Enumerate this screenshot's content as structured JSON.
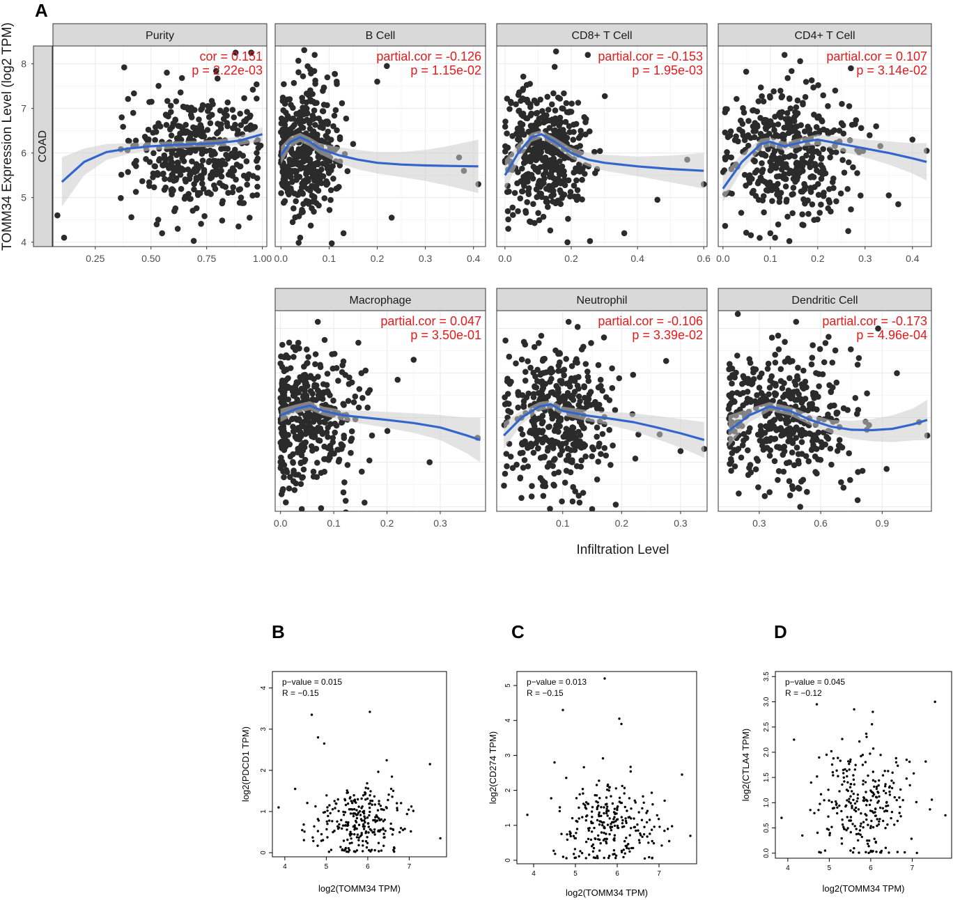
{
  "figure": {
    "panel_letters": [
      "A",
      "B",
      "C",
      "D"
    ],
    "y_title": "TOMM34 Expression Level (log2 TPM)",
    "x_title": "Infiltration Level",
    "row_strip": "COAD",
    "colors": {
      "point": "#2b2b2b",
      "smooth": "#3366cc",
      "ribbon": "#cccccc",
      "annotation": "#e31a1c",
      "strip_bg": "#d9d9d9",
      "grid": "#ebebeb"
    }
  },
  "chart_data": [
    {
      "id": "purity",
      "type": "scatter",
      "title": "Purity",
      "ann1": "cor = 0.151",
      "ann2": "p = 2.22e-03",
      "xlim": [
        0.06,
        1.02
      ],
      "ylim": [
        3.9,
        8.4
      ],
      "xticks": [
        0.25,
        0.5,
        0.75,
        1.0
      ],
      "xtick_labels": [
        "0.25",
        "0.50",
        "0.75",
        "1.00"
      ],
      "yticks": [
        4,
        5,
        6,
        7,
        8
      ],
      "ytick_labels": [
        "4",
        "5",
        "6",
        "7",
        "8"
      ],
      "smooth": [
        [
          0.1,
          5.35
        ],
        [
          0.2,
          5.8
        ],
        [
          0.3,
          6.02
        ],
        [
          0.4,
          6.1
        ],
        [
          0.5,
          6.15
        ],
        [
          0.6,
          6.18
        ],
        [
          0.7,
          6.2
        ],
        [
          0.8,
          6.22
        ],
        [
          0.9,
          6.28
        ],
        [
          1.0,
          6.42
        ]
      ],
      "band": [
        0.55,
        0.3,
        0.18,
        0.12,
        0.09,
        0.08,
        0.07,
        0.08,
        0.1,
        0.16
      ],
      "cluster": {
        "cx": 0.72,
        "sx": 0.14,
        "cy": 6.05,
        "sy": 0.75,
        "n": 420,
        "xmin": 0.1,
        "xmax": 1.0,
        "seed": 11
      },
      "outliers": [
        [
          0.11,
          4.1
        ],
        [
          0.08,
          4.6
        ],
        [
          0.95,
          8.25
        ],
        [
          0.38,
          7.92
        ],
        [
          0.88,
          8.25
        ],
        [
          0.55,
          4.2
        ],
        [
          0.62,
          4.3
        ]
      ]
    },
    {
      "id": "bcell",
      "type": "scatter",
      "title": "B Cell",
      "ann1": "partial.cor = -0.126",
      "ann2": "p = 1.15e-02",
      "xlim": [
        -0.012,
        0.425
      ],
      "ylim": [
        3.9,
        8.4
      ],
      "xticks": [
        0.0,
        0.1,
        0.2,
        0.3,
        0.4
      ],
      "xtick_labels": [
        "0.0",
        "0.1",
        "0.2",
        "0.3",
        "0.4"
      ],
      "yticks": [
        4,
        5,
        6,
        7,
        8
      ],
      "ytick_labels": [],
      "smooth": [
        [
          0.0,
          5.95
        ],
        [
          0.02,
          6.25
        ],
        [
          0.04,
          6.35
        ],
        [
          0.06,
          6.25
        ],
        [
          0.08,
          6.1
        ],
        [
          0.12,
          5.95
        ],
        [
          0.16,
          5.85
        ],
        [
          0.2,
          5.78
        ],
        [
          0.25,
          5.74
        ],
        [
          0.3,
          5.72
        ],
        [
          0.35,
          5.71
        ],
        [
          0.41,
          5.7
        ]
      ],
      "band": [
        0.2,
        0.12,
        0.1,
        0.1,
        0.12,
        0.18,
        0.22,
        0.24,
        0.28,
        0.35,
        0.45,
        0.6
      ],
      "cluster": {
        "cx": 0.05,
        "sx": 0.035,
        "cy": 6.0,
        "sy": 0.75,
        "n": 420,
        "xmin": 0.0,
        "xmax": 0.42,
        "seed": 23
      },
      "outliers": [
        [
          0.07,
          8.2
        ],
        [
          0.22,
          7.95
        ],
        [
          0.2,
          7.6
        ],
        [
          0.23,
          4.55
        ],
        [
          0.41,
          5.3
        ],
        [
          0.38,
          5.6
        ],
        [
          0.37,
          5.9
        ],
        [
          0.13,
          4.2
        ],
        [
          0.04,
          4.1
        ]
      ]
    },
    {
      "id": "cd8",
      "type": "scatter",
      "title": "CD8+ T Cell",
      "ann1": "partial.cor = -0.153",
      "ann2": "p = 1.95e-03",
      "xlim": [
        -0.025,
        0.61
      ],
      "ylim": [
        3.9,
        8.4
      ],
      "xticks": [
        0.0,
        0.2,
        0.4,
        0.6
      ],
      "xtick_labels": [
        "0.0",
        "0.2",
        "0.4",
        "0.6"
      ],
      "yticks": [
        4,
        5,
        6,
        7,
        8
      ],
      "ytick_labels": [],
      "smooth": [
        [
          0.0,
          5.5
        ],
        [
          0.04,
          6.0
        ],
        [
          0.08,
          6.35
        ],
        [
          0.11,
          6.42
        ],
        [
          0.15,
          6.25
        ],
        [
          0.2,
          6.0
        ],
        [
          0.25,
          5.85
        ],
        [
          0.3,
          5.78
        ],
        [
          0.4,
          5.7
        ],
        [
          0.5,
          5.64
        ],
        [
          0.6,
          5.6
        ]
      ],
      "band": [
        0.35,
        0.2,
        0.1,
        0.09,
        0.1,
        0.12,
        0.15,
        0.18,
        0.22,
        0.3,
        0.4
      ],
      "cluster": {
        "cx": 0.12,
        "sx": 0.06,
        "cy": 6.0,
        "sy": 0.75,
        "n": 420,
        "xmin": 0.0,
        "xmax": 0.6,
        "seed": 37
      },
      "outliers": [
        [
          0.25,
          8.2
        ],
        [
          0.6,
          5.3
        ],
        [
          0.46,
          4.95
        ],
        [
          0.36,
          4.2
        ],
        [
          0.01,
          4.3
        ],
        [
          0.55,
          5.85
        ]
      ]
    },
    {
      "id": "cd4",
      "type": "scatter",
      "title": "CD4+ T Cell",
      "ann1": "partial.cor = 0.107",
      "ann2": "p = 3.14e-02",
      "xlim": [
        -0.01,
        0.44
      ],
      "ylim": [
        3.9,
        8.4
      ],
      "xticks": [
        0.0,
        0.1,
        0.2,
        0.3,
        0.4
      ],
      "xtick_labels": [
        "0.0",
        "0.1",
        "0.2",
        "0.3",
        "0.4"
      ],
      "yticks": [
        4,
        5,
        6,
        7,
        8
      ],
      "ytick_labels": [],
      "smooth": [
        [
          0.0,
          5.2
        ],
        [
          0.04,
          5.8
        ],
        [
          0.08,
          6.2
        ],
        [
          0.1,
          6.25
        ],
        [
          0.13,
          6.15
        ],
        [
          0.17,
          6.25
        ],
        [
          0.2,
          6.3
        ],
        [
          0.25,
          6.2
        ],
        [
          0.3,
          6.1
        ],
        [
          0.35,
          6.0
        ],
        [
          0.4,
          5.88
        ],
        [
          0.43,
          5.8
        ]
      ],
      "band": [
        0.3,
        0.18,
        0.12,
        0.1,
        0.1,
        0.1,
        0.12,
        0.16,
        0.2,
        0.26,
        0.34,
        0.42
      ],
      "cluster": {
        "cx": 0.14,
        "sx": 0.07,
        "cy": 6.0,
        "sy": 0.75,
        "n": 420,
        "xmin": 0.0,
        "xmax": 0.43,
        "seed": 53
      },
      "outliers": [
        [
          0.13,
          8.2
        ],
        [
          0.27,
          7.9
        ],
        [
          0.35,
          5.05
        ],
        [
          0.37,
          4.85
        ],
        [
          0.43,
          6.05
        ],
        [
          0.4,
          6.3
        ],
        [
          0.11,
          4.1
        ],
        [
          0.1,
          4.2
        ]
      ]
    },
    {
      "id": "macrophage",
      "type": "scatter",
      "title": "Macrophage",
      "ann1": "partial.cor = 0.047",
      "ann2": "p = 3.50e-01",
      "xlim": [
        -0.01,
        0.385
      ],
      "ylim": [
        3.9,
        8.4
      ],
      "xticks": [
        0.0,
        0.1,
        0.2,
        0.3
      ],
      "xtick_labels": [
        "0.0",
        "0.1",
        "0.2",
        "0.3"
      ],
      "yticks": [
        4,
        5,
        6,
        7,
        8
      ],
      "ytick_labels": [],
      "smooth": [
        [
          0.0,
          6.05
        ],
        [
          0.03,
          6.2
        ],
        [
          0.055,
          6.27
        ],
        [
          0.08,
          6.15
        ],
        [
          0.12,
          6.05
        ],
        [
          0.16,
          6.0
        ],
        [
          0.2,
          5.95
        ],
        [
          0.25,
          5.88
        ],
        [
          0.3,
          5.78
        ],
        [
          0.35,
          5.6
        ],
        [
          0.375,
          5.5
        ]
      ],
      "band": [
        0.15,
        0.1,
        0.1,
        0.1,
        0.12,
        0.15,
        0.18,
        0.22,
        0.28,
        0.4,
        0.5
      ],
      "cluster": {
        "cx": 0.05,
        "sx": 0.05,
        "cy": 6.0,
        "sy": 0.75,
        "n": 420,
        "xmin": 0.0,
        "xmax": 0.38,
        "seed": 71
      },
      "outliers": [
        [
          0.07,
          8.15
        ],
        [
          0.25,
          7.3
        ],
        [
          0.22,
          6.85
        ],
        [
          0.28,
          5.0
        ],
        [
          0.01,
          4.1
        ],
        [
          0.04,
          3.95
        ],
        [
          0.12,
          4.55
        ],
        [
          0.37,
          5.55
        ]
      ]
    },
    {
      "id": "neutrophil",
      "type": "scatter",
      "title": "Neutrophil",
      "ann1": "partial.cor = -0.106",
      "ann2": "p = 3.39e-02",
      "xlim": [
        -0.012,
        0.345
      ],
      "ylim": [
        3.9,
        8.4
      ],
      "xticks": [
        0.1,
        0.2,
        0.3
      ],
      "xtick_labels": [
        "0.1",
        "0.2",
        "0.3"
      ],
      "yticks": [
        4,
        5,
        6,
        7,
        8
      ],
      "ytick_labels": [],
      "smooth": [
        [
          0.0,
          5.6
        ],
        [
          0.03,
          6.0
        ],
        [
          0.06,
          6.25
        ],
        [
          0.08,
          6.3
        ],
        [
          0.1,
          6.15
        ],
        [
          0.14,
          6.05
        ],
        [
          0.18,
          5.98
        ],
        [
          0.22,
          5.9
        ],
        [
          0.26,
          5.78
        ],
        [
          0.3,
          5.65
        ],
        [
          0.34,
          5.5
        ]
      ],
      "band": [
        0.3,
        0.15,
        0.1,
        0.09,
        0.1,
        0.12,
        0.15,
        0.2,
        0.26,
        0.32,
        0.4
      ],
      "cluster": {
        "cx": 0.09,
        "sx": 0.05,
        "cy": 6.0,
        "sy": 0.75,
        "n": 420,
        "xmin": 0.0,
        "xmax": 0.34,
        "seed": 89
      },
      "outliers": [
        [
          0.11,
          8.15
        ],
        [
          0.17,
          7.8
        ],
        [
          0.34,
          5.3
        ],
        [
          0.3,
          5.25
        ],
        [
          0.15,
          3.95
        ],
        [
          0.19,
          4.05
        ],
        [
          0.03,
          4.2
        ]
      ]
    },
    {
      "id": "dendritic",
      "type": "scatter",
      "title": "Dendritic Cell",
      "ann1": "partial.cor = -0.173",
      "ann2": "p = 4.96e-04",
      "xlim": [
        0.1,
        1.14
      ],
      "ylim": [
        3.9,
        8.4
      ],
      "xticks": [
        0.3,
        0.6,
        0.9
      ],
      "xtick_labels": [
        "0.3",
        "0.6",
        "0.9"
      ],
      "yticks": [
        4,
        5,
        6,
        7,
        8
      ],
      "ytick_labels": [],
      "smooth": [
        [
          0.15,
          5.7
        ],
        [
          0.25,
          6.05
        ],
        [
          0.35,
          6.25
        ],
        [
          0.45,
          6.15
        ],
        [
          0.55,
          5.95
        ],
        [
          0.65,
          5.8
        ],
        [
          0.75,
          5.73
        ],
        [
          0.85,
          5.72
        ],
        [
          0.95,
          5.75
        ],
        [
          1.05,
          5.85
        ],
        [
          1.12,
          5.95
        ]
      ],
      "band": [
        0.35,
        0.16,
        0.1,
        0.1,
        0.12,
        0.15,
        0.2,
        0.25,
        0.3,
        0.36,
        0.45
      ],
      "cluster": {
        "cx": 0.42,
        "sx": 0.18,
        "cy": 6.0,
        "sy": 0.75,
        "n": 420,
        "xmin": 0.15,
        "xmax": 1.12,
        "seed": 97
      },
      "outliers": [
        [
          0.48,
          8.15
        ],
        [
          0.88,
          8.0
        ],
        [
          0.2,
          4.3
        ],
        [
          0.5,
          4.0
        ],
        [
          0.78,
          4.15
        ],
        [
          1.12,
          5.6
        ],
        [
          1.08,
          5.9
        ]
      ]
    },
    {
      "id": "pdcd1",
      "type": "scatter",
      "title": "",
      "ann1": "p−value = 0.015",
      "ann2": "R = −0.15",
      "xlabel": "log2(TOMM34 TPM)",
      "ylabel": "log2(PDCD1 TPM)",
      "xlim": [
        3.7,
        7.9
      ],
      "ylim": [
        -0.1,
        4.4
      ],
      "xticks": [
        4,
        5,
        6,
        7
      ],
      "xtick_labels": [
        "4",
        "5",
        "6",
        "7"
      ],
      "yticks": [
        0,
        1,
        2,
        3,
        4
      ],
      "ytick_labels": [
        "0",
        "1",
        "2",
        "3",
        "4"
      ],
      "cluster": {
        "cx": 5.8,
        "sx": 0.55,
        "cy": 0.75,
        "sy": 0.45,
        "n": 260,
        "xmin": 4.4,
        "xmax": 7.4,
        "ymin": 0.02,
        "seed": 131
      },
      "outliers": [
        [
          4.65,
          3.35
        ],
        [
          6.05,
          3.42
        ],
        [
          4.8,
          2.8
        ],
        [
          4.95,
          2.65
        ],
        [
          3.85,
          1.1
        ],
        [
          7.75,
          0.35
        ],
        [
          7.5,
          2.15
        ],
        [
          4.25,
          1.55
        ]
      ]
    },
    {
      "id": "cd274",
      "type": "scatter",
      "title": "",
      "ann1": "p−value = 0.013",
      "ann2": "R = −0.15",
      "xlabel": "log2(TOMM34 TPM)",
      "ylabel": "log2(CD274 TPM)",
      "xlim": [
        3.6,
        7.9
      ],
      "ylim": [
        -0.1,
        5.4
      ],
      "xticks": [
        4,
        5,
        6,
        7
      ],
      "xtick_labels": [
        "4",
        "5",
        "6",
        "7"
      ],
      "yticks": [
        0,
        1,
        2,
        3,
        4,
        5
      ],
      "ytick_labels": [
        "0",
        "1",
        "2",
        "3",
        "4",
        "5"
      ],
      "cluster": {
        "cx": 5.8,
        "sx": 0.55,
        "cy": 1.0,
        "sy": 0.6,
        "n": 260,
        "xmin": 4.4,
        "xmax": 7.4,
        "ymin": 0.05,
        "seed": 151
      },
      "outliers": [
        [
          5.7,
          5.2
        ],
        [
          4.7,
          4.3
        ],
        [
          6.05,
          4.05
        ],
        [
          6.1,
          3.9
        ],
        [
          3.85,
          1.3
        ],
        [
          7.75,
          0.7
        ],
        [
          7.55,
          2.45
        ],
        [
          4.5,
          2.8
        ]
      ]
    },
    {
      "id": "ctla4",
      "type": "scatter",
      "title": "",
      "ann1": "p−value = 0.045",
      "ann2": "R = −0.12",
      "xlabel": "log2(TOMM34 TPM)",
      "ylabel": "log2(CTLA4 TPM)",
      "xlim": [
        3.7,
        7.95
      ],
      "ylim": [
        -0.1,
        3.6
      ],
      "xticks": [
        4,
        5,
        6,
        7
      ],
      "xtick_labels": [
        "4",
        "5",
        "6",
        "7"
      ],
      "yticks": [
        0,
        0.5,
        1,
        1.5,
        2,
        2.5,
        3,
        3.5
      ],
      "ytick_labels": [
        "0.0",
        "0.5",
        "1.0",
        "1.5",
        "2.0",
        "2.5",
        "3.0",
        "3.5"
      ],
      "cluster": {
        "cx": 5.85,
        "sx": 0.55,
        "cy": 0.95,
        "sy": 0.55,
        "n": 260,
        "xmin": 4.5,
        "xmax": 7.5,
        "ymin": 0.0,
        "seed": 171
      },
      "outliers": [
        [
          4.7,
          2.95
        ],
        [
          5.6,
          2.85
        ],
        [
          6.05,
          2.8
        ],
        [
          4.15,
          2.25
        ],
        [
          3.85,
          0.7
        ],
        [
          7.8,
          0.75
        ],
        [
          7.55,
          3.0
        ],
        [
          4.35,
          0.35
        ],
        [
          4.9,
          0.05
        ]
      ]
    }
  ]
}
